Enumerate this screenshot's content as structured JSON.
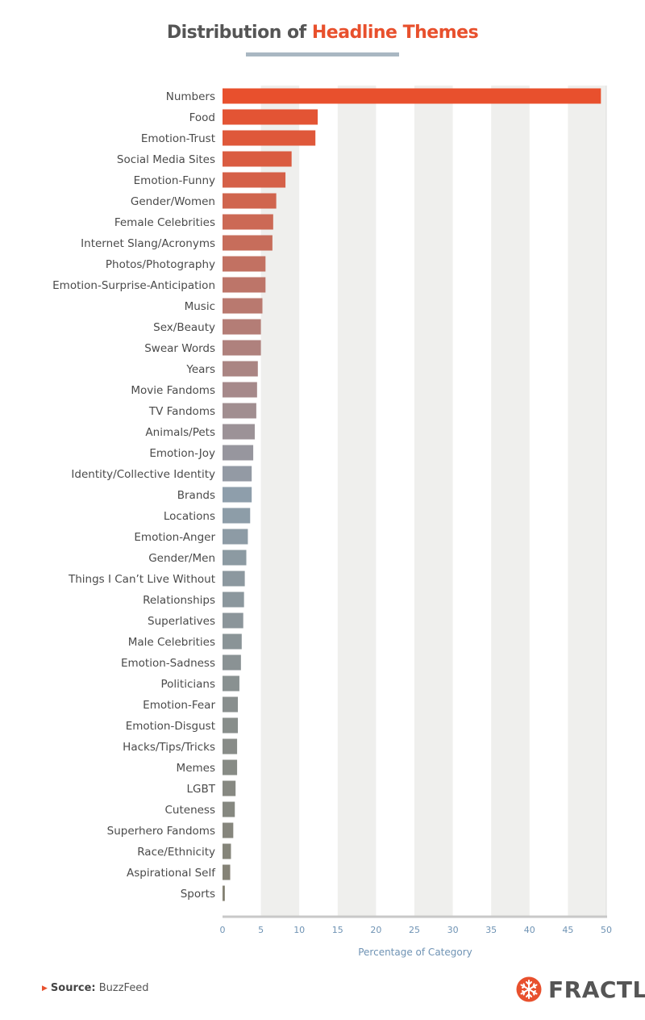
{
  "header": {
    "title_part1": "Distribution of ",
    "title_part2": "Headline Themes"
  },
  "chart_data": {
    "type": "bar",
    "orientation": "horizontal",
    "title": "Distribution of Headline Themes",
    "xlabel": "Percentage of Category",
    "ylabel": "",
    "xlim": [
      0,
      50
    ],
    "xticks": [
      0,
      5,
      10,
      15,
      20,
      25,
      30,
      35,
      40,
      45,
      50
    ],
    "grid": "alternating vertical bands",
    "colors": {
      "start": "#e8502d",
      "mid": "#8e9eab",
      "end": "#848274"
    },
    "categories": [
      "Numbers",
      "Food",
      "Emotion-Trust",
      "Social Media Sites",
      "Emotion-Funny",
      "Gender/Women",
      "Female Celebrities",
      "Internet Slang/Acronyms",
      "Photos/Photography",
      "Emotion-Surprise-Anticipation",
      "Music",
      "Sex/Beauty",
      "Swear Words",
      "Years",
      "Movie Fandoms",
      "TV Fandoms",
      "Animals/Pets",
      "Emotion-Joy",
      "Identity/Collective Identity",
      "Brands",
      "Locations",
      "Emotion-Anger",
      "Gender/Men",
      "Things I Can’t Live Without",
      "Relationships",
      "Superlatives",
      "Male Celebrities",
      "Emotion-Sadness",
      "Politicians",
      "Emotion-Fear",
      "Emotion-Disgust",
      "Hacks/Tips/Tricks",
      "Memes",
      "LGBT",
      "Cuteness",
      "Superhero Fandoms",
      "Race/Ethnicity",
      "Aspirational Self",
      "Sports"
    ],
    "values": [
      49.3,
      12.4,
      12.1,
      9.0,
      8.2,
      7.0,
      6.6,
      6.5,
      5.6,
      5.6,
      5.2,
      5.0,
      5.0,
      4.6,
      4.5,
      4.4,
      4.2,
      4.0,
      3.8,
      3.8,
      3.6,
      3.3,
      3.1,
      2.9,
      2.8,
      2.7,
      2.5,
      2.4,
      2.2,
      2.0,
      2.0,
      1.9,
      1.9,
      1.7,
      1.6,
      1.4,
      1.1,
      1.0,
      0.3
    ]
  },
  "footer": {
    "source_key": "Source:",
    "source_value": " BuzzFeed",
    "logo_text": "FRACTL",
    "logo_icon": "snowflake-icon"
  }
}
